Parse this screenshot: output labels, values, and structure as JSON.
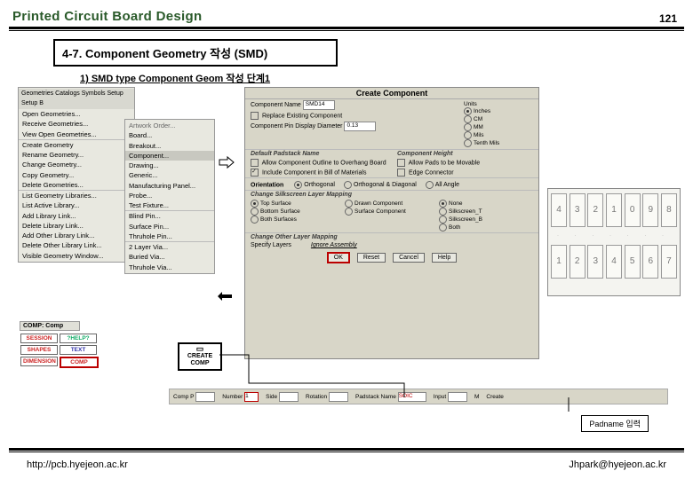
{
  "header": {
    "title": "Printed Circuit Board Design",
    "page": "121"
  },
  "section": {
    "title": "4-7. Component Geometry 작성 (SMD)",
    "sub": "1) SMD type Component Geom 작성 단계1"
  },
  "menu": {
    "tabs": "Geometries  Catalogs  Symbols  Setup  Setup B",
    "items": [
      "Open Geometries...",
      "Receive Geometries...",
      "View Open Geometries...",
      "Create Geometry",
      "Rename Geometry...",
      "Change Geometry...",
      "Copy Geometry...",
      "Delete Geometries...",
      "List Geometry Libraries...",
      "List Active Library...",
      "Add Library Link...",
      "Delete Library Link...",
      "Add Other Library Link...",
      "Delete Other Library Link...",
      "Visible Geometry Window..."
    ],
    "sub_header": "Artwork Order...",
    "sub_items": [
      "Board...",
      "Breakout...",
      "Component...",
      "Drawing...",
      "Generic...",
      "Manufacturing Panel...",
      "Probe...",
      "Test Fixture...",
      "Blind Pin...",
      "Surface Pin...",
      "Thruhole Pin...",
      "2 Layer Via...",
      "Buried Via...",
      "Thruhole Via..."
    ]
  },
  "dialog": {
    "title": "Create Component",
    "component_name_label": "Component Name",
    "component_name_value": "SMD14",
    "replace_label": "Replace Existing Component",
    "pin_disp_label": "Component Pin Display Diameter",
    "pin_disp_value": "0.13",
    "units_label": "Units",
    "units": [
      "Inches",
      "CM",
      "MM",
      "Mils",
      "Tenth Mils"
    ],
    "default_padstack": "Default Padstack Name",
    "component_height": "Component Height",
    "snap_label": "Allow Component Outline to Overhang Board",
    "allow_pads_label": "Allow Pads to be Movable",
    "include_bom_label": "Include Component in Bill of Materials",
    "edge_conn_label": "Edge Connector",
    "orientation_label": "Orientation",
    "orient_opts": [
      "Orthogonal",
      "Orthogonal & Diagonal",
      "All Angle"
    ],
    "silkmap_title": "Change Silkscreen Layer Mapping",
    "silk_left": [
      "Top Surface",
      "Bottom Surface",
      "Both Surfaces"
    ],
    "silk_mid": [
      "Drawn Component",
      "Surface Component"
    ],
    "silk_right": [
      "None",
      "Silkscreen_T",
      "Silkscreen_B",
      "Both"
    ],
    "other_layer_title": "Change Other Layer Mapping",
    "specify_layers": "Specify Layers",
    "ignore_label": "Ignore Assembly",
    "buttons": {
      "ok": "OK",
      "reset": "Reset",
      "cancel": "Cancel",
      "help": "Help"
    }
  },
  "numpad": {
    "row1": [
      "4",
      "3",
      "2",
      "1",
      "0",
      "9",
      "8"
    ],
    "row2": [
      "1",
      "2",
      "3",
      "4",
      "5",
      "6",
      "7"
    ]
  },
  "left_buttons": {
    "comp_label": "COMP: Comp",
    "rows": [
      [
        "SESSION",
        "?HELP?"
      ],
      [
        "SHAPES",
        "TEXT"
      ],
      [
        "DIMENSION",
        "COMP"
      ]
    ],
    "colors": [
      [
        "c-red",
        "c-grn"
      ],
      [
        "c-red",
        "c-blu"
      ],
      [
        "c-red",
        "c-red"
      ]
    ]
  },
  "create_comp_btn": "CREATE COMP",
  "bottom_bar": {
    "fields": [
      {
        "l": "Comp P",
        "v": ""
      },
      {
        "l": "Number",
        "v": "1"
      },
      {
        "l": "Side",
        "v": ""
      },
      {
        "l": "Rotation",
        "v": ""
      },
      {
        "l": "Padstack Name",
        "v": "SOIC"
      },
      {
        "l": "Input",
        "v": ""
      },
      {
        "l": "M"
      },
      {
        "l": "Create"
      }
    ]
  },
  "padname_label": "Padname 입력",
  "footer": {
    "left": "http://pcb.hyejeon.ac.kr",
    "right": "Jhpark@hyejeon.ac.kr"
  }
}
